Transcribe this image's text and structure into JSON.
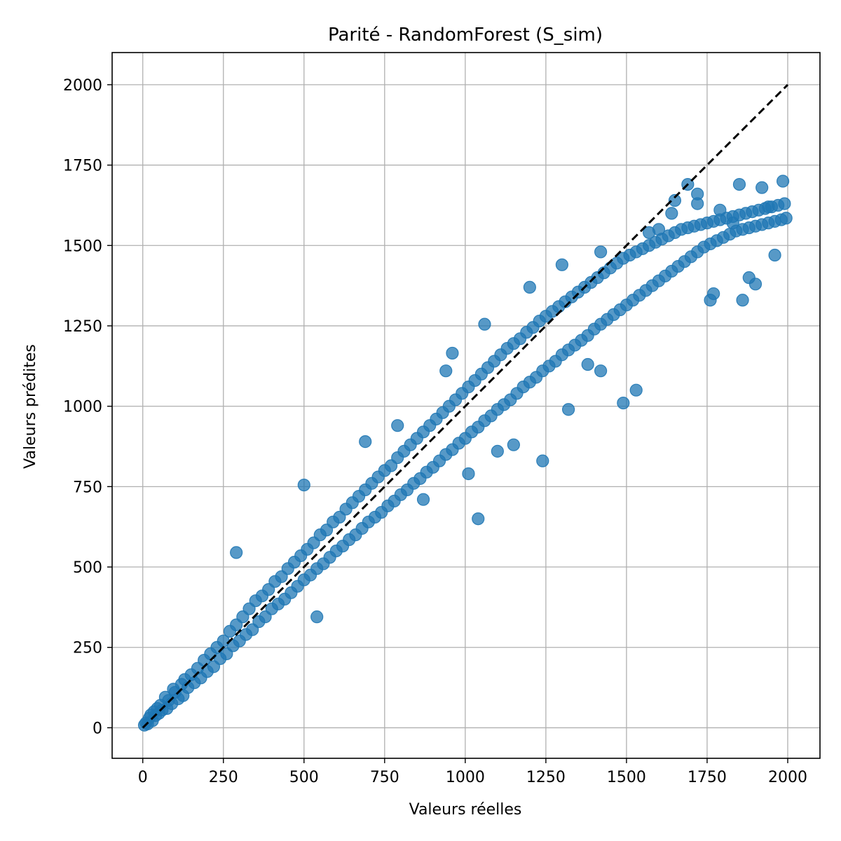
{
  "chart_data": {
    "type": "scatter",
    "title": "Parité - RandomForest (S_sim)",
    "xlabel": "Valeurs réelles",
    "ylabel": "Valeurs prédites",
    "xlim": [
      -95,
      2100
    ],
    "ylim": [
      -95,
      2100
    ],
    "xticks": [
      0,
      250,
      500,
      750,
      1000,
      1250,
      1500,
      1750,
      2000
    ],
    "yticks": [
      0,
      250,
      500,
      750,
      1000,
      1250,
      1500,
      1750,
      2000
    ],
    "grid": true,
    "marker_color": "#1f77b4",
    "marker_alpha": 0.75,
    "reference_line": {
      "style": "dashed",
      "color": "#000000",
      "from": [
        0,
        0
      ],
      "to": [
        2000,
        2000
      ]
    },
    "series": [
      {
        "points": [
          [
            5,
            8
          ],
          [
            10,
            15
          ],
          [
            15,
            12
          ],
          [
            20,
            30
          ],
          [
            25,
            40
          ],
          [
            30,
            22
          ],
          [
            35,
            50
          ],
          [
            40,
            38
          ],
          [
            45,
            60
          ],
          [
            50,
            45
          ],
          [
            55,
            70
          ],
          [
            60,
            55
          ],
          [
            70,
            95
          ],
          [
            75,
            60
          ],
          [
            80,
            85
          ],
          [
            90,
            75
          ],
          [
            95,
            120
          ],
          [
            100,
            110
          ],
          [
            110,
            90
          ],
          [
            120,
            135
          ],
          [
            125,
            100
          ],
          [
            130,
            150
          ],
          [
            140,
            125
          ],
          [
            150,
            165
          ],
          [
            160,
            140
          ],
          [
            170,
            185
          ],
          [
            180,
            155
          ],
          [
            190,
            210
          ],
          [
            200,
            175
          ],
          [
            210,
            230
          ],
          [
            220,
            190
          ],
          [
            230,
            250
          ],
          [
            240,
            215
          ],
          [
            250,
            270
          ],
          [
            260,
            230
          ],
          [
            270,
            300
          ],
          [
            280,
            255
          ],
          [
            290,
            320
          ],
          [
            300,
            270
          ],
          [
            310,
            345
          ],
          [
            320,
            290
          ],
          [
            330,
            370
          ],
          [
            340,
            305
          ],
          [
            350,
            395
          ],
          [
            360,
            330
          ],
          [
            370,
            410
          ],
          [
            380,
            345
          ],
          [
            390,
            430
          ],
          [
            400,
            370
          ],
          [
            410,
            455
          ],
          [
            420,
            385
          ],
          [
            430,
            470
          ],
          [
            440,
            400
          ],
          [
            450,
            495
          ],
          [
            460,
            420
          ],
          [
            470,
            515
          ],
          [
            480,
            440
          ],
          [
            490,
            535
          ],
          [
            500,
            460
          ],
          [
            510,
            555
          ],
          [
            520,
            475
          ],
          [
            530,
            575
          ],
          [
            540,
            495
          ],
          [
            550,
            600
          ],
          [
            560,
            510
          ],
          [
            570,
            615
          ],
          [
            580,
            530
          ],
          [
            590,
            640
          ],
          [
            600,
            550
          ],
          [
            610,
            655
          ],
          [
            620,
            565
          ],
          [
            630,
            680
          ],
          [
            640,
            585
          ],
          [
            650,
            700
          ],
          [
            660,
            600
          ],
          [
            670,
            720
          ],
          [
            680,
            620
          ],
          [
            690,
            740
          ],
          [
            700,
            640
          ],
          [
            710,
            760
          ],
          [
            720,
            655
          ],
          [
            730,
            780
          ],
          [
            740,
            670
          ],
          [
            750,
            800
          ],
          [
            760,
            690
          ],
          [
            770,
            815
          ],
          [
            780,
            705
          ],
          [
            790,
            840
          ],
          [
            800,
            725
          ],
          [
            810,
            860
          ],
          [
            820,
            740
          ],
          [
            830,
            880
          ],
          [
            840,
            760
          ],
          [
            850,
            900
          ],
          [
            860,
            775
          ],
          [
            870,
            920
          ],
          [
            880,
            795
          ],
          [
            890,
            940
          ],
          [
            900,
            810
          ],
          [
            910,
            960
          ],
          [
            920,
            830
          ],
          [
            930,
            980
          ],
          [
            940,
            850
          ],
          [
            950,
            1000
          ],
          [
            960,
            865
          ],
          [
            970,
            1020
          ],
          [
            980,
            885
          ],
          [
            990,
            1040
          ],
          [
            1000,
            900
          ],
          [
            1010,
            1060
          ],
          [
            1020,
            920
          ],
          [
            1030,
            1080
          ],
          [
            1040,
            935
          ],
          [
            1050,
            1100
          ],
          [
            1060,
            955
          ],
          [
            1070,
            1120
          ],
          [
            1080,
            970
          ],
          [
            1090,
            1140
          ],
          [
            1100,
            990
          ],
          [
            1110,
            1160
          ],
          [
            1120,
            1005
          ],
          [
            1130,
            1180
          ],
          [
            1140,
            1020
          ],
          [
            1150,
            1195
          ],
          [
            1160,
            1040
          ],
          [
            1170,
            1210
          ],
          [
            1180,
            1060
          ],
          [
            1190,
            1230
          ],
          [
            1200,
            1075
          ],
          [
            1210,
            1245
          ],
          [
            1220,
            1090
          ],
          [
            1230,
            1265
          ],
          [
            1240,
            1110
          ],
          [
            1250,
            1280
          ],
          [
            1260,
            1125
          ],
          [
            1270,
            1295
          ],
          [
            1280,
            1140
          ],
          [
            1290,
            1310
          ],
          [
            1300,
            1160
          ],
          [
            1310,
            1325
          ],
          [
            1320,
            1175
          ],
          [
            1330,
            1340
          ],
          [
            1340,
            1190
          ],
          [
            1350,
            1355
          ],
          [
            1360,
            1205
          ],
          [
            1370,
            1370
          ],
          [
            1380,
            1220
          ],
          [
            1390,
            1385
          ],
          [
            1400,
            1240
          ],
          [
            1410,
            1400
          ],
          [
            1420,
            1255
          ],
          [
            1430,
            1415
          ],
          [
            1440,
            1270
          ],
          [
            1450,
            1430
          ],
          [
            1460,
            1285
          ],
          [
            1470,
            1445
          ],
          [
            1480,
            1300
          ],
          [
            1490,
            1460
          ],
          [
            1500,
            1315
          ],
          [
            1510,
            1470
          ],
          [
            1520,
            1330
          ],
          [
            1530,
            1480
          ],
          [
            1540,
            1345
          ],
          [
            1550,
            1490
          ],
          [
            1560,
            1360
          ],
          [
            1570,
            1500
          ],
          [
            1580,
            1375
          ],
          [
            1590,
            1510
          ],
          [
            1600,
            1390
          ],
          [
            1610,
            1520
          ],
          [
            1620,
            1405
          ],
          [
            1630,
            1530
          ],
          [
            1640,
            1420
          ],
          [
            1650,
            1540
          ],
          [
            1660,
            1435
          ],
          [
            1670,
            1550
          ],
          [
            1680,
            1450
          ],
          [
            1690,
            1555
          ],
          [
            1700,
            1465
          ],
          [
            1710,
            1560
          ],
          [
            1720,
            1480
          ],
          [
            1730,
            1565
          ],
          [
            1740,
            1495
          ],
          [
            1750,
            1570
          ],
          [
            1760,
            1505
          ],
          [
            1770,
            1575
          ],
          [
            1780,
            1515
          ],
          [
            1790,
            1580
          ],
          [
            1800,
            1525
          ],
          [
            1810,
            1585
          ],
          [
            1820,
            1535
          ],
          [
            1830,
            1590
          ],
          [
            1840,
            1545
          ],
          [
            1850,
            1595
          ],
          [
            1860,
            1550
          ],
          [
            1870,
            1600
          ],
          [
            1880,
            1555
          ],
          [
            1890,
            1605
          ],
          [
            1900,
            1560
          ],
          [
            1910,
            1610
          ],
          [
            1920,
            1565
          ],
          [
            1930,
            1615
          ],
          [
            1940,
            1570
          ],
          [
            1950,
            1620
          ],
          [
            1960,
            1575
          ],
          [
            1970,
            1625
          ],
          [
            1980,
            1580
          ],
          [
            1990,
            1630
          ],
          [
            1995,
            1585
          ],
          [
            1985,
            1700
          ],
          [
            290,
            545
          ],
          [
            500,
            755
          ],
          [
            960,
            1165
          ],
          [
            1040,
            650
          ],
          [
            1490,
            1010
          ],
          [
            1530,
            1050
          ],
          [
            1240,
            830
          ],
          [
            1100,
            860
          ],
          [
            1320,
            990
          ],
          [
            540,
            345
          ],
          [
            870,
            710
          ],
          [
            1720,
            1630
          ],
          [
            1850,
            1690
          ],
          [
            1690,
            1690
          ],
          [
            1760,
            1330
          ],
          [
            1860,
            1330
          ],
          [
            1900,
            1380
          ],
          [
            1380,
            1130
          ],
          [
            1420,
            1110
          ],
          [
            1770,
            1350
          ],
          [
            1200,
            1370
          ],
          [
            940,
            1110
          ],
          [
            1060,
            1255
          ],
          [
            1600,
            1550
          ],
          [
            1650,
            1640
          ],
          [
            1790,
            1610
          ],
          [
            1920,
            1680
          ],
          [
            1960,
            1470
          ],
          [
            1880,
            1400
          ],
          [
            1010,
            790
          ],
          [
            1150,
            880
          ],
          [
            690,
            890
          ],
          [
            790,
            940
          ],
          [
            1300,
            1440
          ],
          [
            1420,
            1480
          ],
          [
            1570,
            1540
          ],
          [
            1640,
            1600
          ],
          [
            1720,
            1660
          ],
          [
            1830,
            1570
          ],
          [
            1940,
            1620
          ]
        ]
      }
    ]
  }
}
